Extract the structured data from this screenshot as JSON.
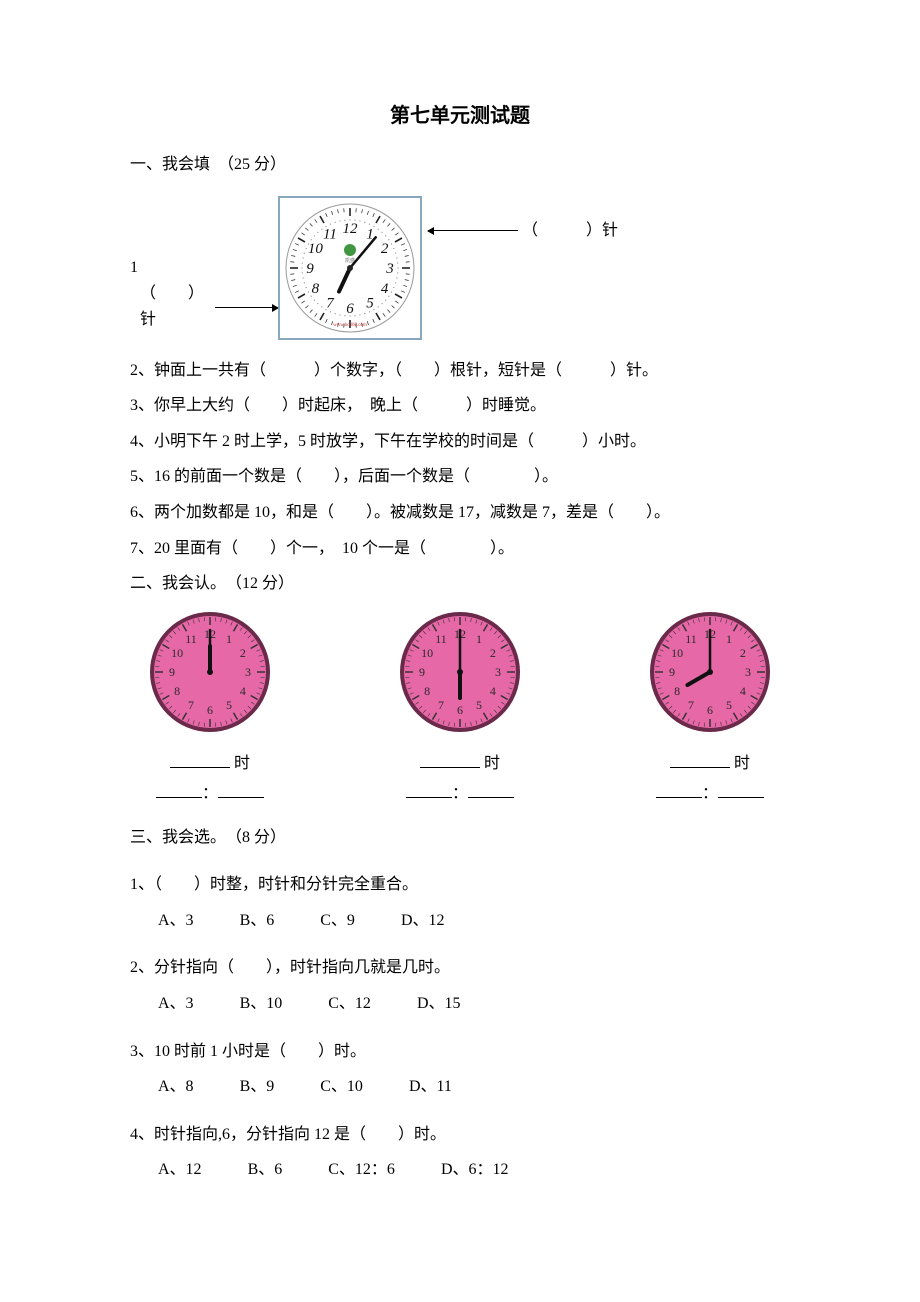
{
  "title": "第七单元测试题",
  "s1": {
    "heading": "一、我会填　（25 分）",
    "q1_index": "1",
    "q1_left_blank_label": "（　　）针",
    "q1_right_blank_label": "（　　　）针",
    "clock1": {
      "border_color": "#88a8c0",
      "face_bg": "#ffffff",
      "tick_color": "#222222",
      "num_color": "#111111",
      "hour_angle": 205,
      "minute_angle": 40,
      "second_angle": 0,
      "center_dot": "#222222",
      "show_logo": true,
      "logo_color": "#2e8b2e"
    },
    "q2": "2、钟面上一共有（　　　）个数字，（　　）根针，短针是（　　　）针。",
    "q3": "3、你早上大约（　　）时起床，　晚上（　　　）时睡觉。",
    "q4": "4、小明下午 2 时上学，5 时放学，下午在学校的时间是（　　　）小时。",
    "q5": "5、16 的前面一个数是（　　），后面一个数是（　　　　）。",
    "q6": "6、两个加数都是 10，和是（　　）。被减数是 17，减数是 7，差是（　　）。",
    "q7": "7、20 里面有（　　）个一，　10 个一是（　　　　）。"
  },
  "s2": {
    "heading": "二、我会认。　（12 分）",
    "clocks": [
      {
        "hour_angle": 360,
        "minute_angle": 0
      },
      {
        "hour_angle": 180,
        "minute_angle": 0
      },
      {
        "hour_angle": 240,
        "minute_angle": 0
      }
    ],
    "pink_clock_style": {
      "face_fill": "#e668a7",
      "rim": "#6b2a4a",
      "num_color": "#2a2a2a",
      "hand_color": "#111111"
    },
    "label_hour": "时",
    "colon": "："
  },
  "s3": {
    "heading": "三、我会选。　（8 分）",
    "qs": [
      {
        "stem": "1、（　　）时整，时针和分针完全重合。",
        "opts": [
          "A、3",
          "B、6",
          "C、9",
          "D、12"
        ]
      },
      {
        "stem": "2、分针指向（　　），时针指向几就是几时。",
        "opts": [
          "A、3",
          "B、10",
          "C、12",
          "D、15"
        ]
      },
      {
        "stem": "3、10 时前 1 小时是（　　）时。",
        "opts": [
          "A、8",
          "B、9",
          "C、10",
          "D、11"
        ]
      },
      {
        "stem": "4、时针指向,6，分针指向 12 是（　　）时。",
        "opts": [
          "A、12",
          "B、6",
          "C、12：6",
          "D、6：12"
        ]
      }
    ]
  }
}
